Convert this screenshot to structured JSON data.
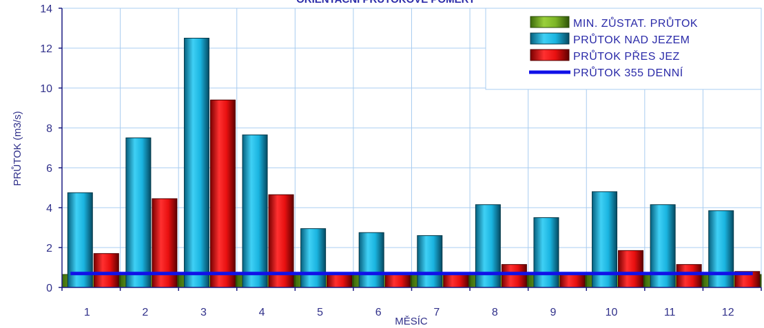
{
  "chart_data": {
    "type": "bar",
    "title": "ORIENTAČNÍ PRŮTOKOVÉ POMĚRY",
    "xlabel": "MĚSÍC",
    "ylabel": "PRŮTOK (m3/s)",
    "ylim": [
      0,
      14
    ],
    "yticks": [
      0,
      2,
      4,
      6,
      8,
      10,
      12,
      14
    ],
    "categories": [
      "1",
      "2",
      "3",
      "4",
      "5",
      "6",
      "7",
      "8",
      "9",
      "10",
      "11",
      "12"
    ],
    "grid": true,
    "legend_position": "top-right",
    "series": [
      {
        "name": "MIN. ZŮSTAT. PRŮTOK",
        "kind": "bar",
        "color": "#6aa51e",
        "values": [
          0.65,
          0.65,
          0.65,
          0.65,
          0.65,
          0.65,
          0.65,
          0.65,
          0.65,
          0.65,
          0.65,
          0.65
        ]
      },
      {
        "name": "PRŮTOK NAD JEZEM",
        "kind": "bar",
        "color": "#1ab4e0",
        "values": [
          4.75,
          7.5,
          12.5,
          7.65,
          2.95,
          2.75,
          2.6,
          4.15,
          3.5,
          4.8,
          4.15,
          3.85
        ]
      },
      {
        "name": "PRŮTOK PŘES JEZ",
        "kind": "bar",
        "color": "#e81010",
        "values": [
          1.7,
          4.45,
          9.4,
          4.65,
          0.65,
          0.65,
          0.65,
          1.15,
          0.65,
          1.85,
          1.15,
          0.8
        ]
      },
      {
        "name": "PRŮTOK 355 DENNÍ",
        "kind": "line",
        "color": "#1010e8",
        "values": [
          0.7,
          0.7,
          0.7,
          0.7,
          0.7,
          0.7,
          0.7,
          0.7,
          0.7,
          0.7,
          0.7,
          0.7
        ]
      }
    ]
  }
}
